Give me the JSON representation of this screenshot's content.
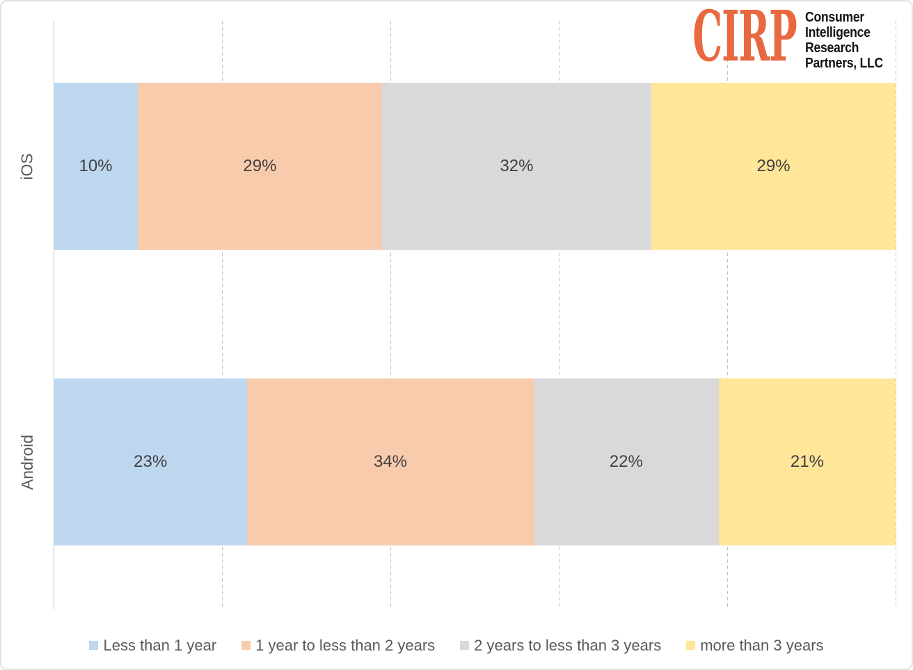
{
  "logo": {
    "brand": "CIRP",
    "brand_color": "#E8693F",
    "company_lines": [
      "Consumer",
      "Intelligence",
      "Research",
      "Partners, LLC"
    ]
  },
  "chart_data": {
    "type": "bar",
    "variant": "horizontal-stacked",
    "title": "",
    "categories": [
      "iOS",
      "Android"
    ],
    "series": [
      {
        "name": "Less than 1 year",
        "color": "#BDD7EE",
        "values": [
          10,
          23
        ]
      },
      {
        "name": "1 year to less than 2 years",
        "color": "#F8CBAD",
        "values": [
          29,
          34
        ]
      },
      {
        "name": "2 years to less than 3 years",
        "color": "#D9D9D9",
        "values": [
          32,
          22
        ]
      },
      {
        "name": "more than 3 years",
        "color": "#FFE699",
        "values": [
          29,
          21
        ]
      }
    ],
    "value_suffix": "%",
    "xlim": [
      0,
      100
    ],
    "gridlines_percent": [
      20,
      40,
      60,
      80,
      100
    ],
    "grid": true,
    "legend_position": "bottom",
    "value_label_color": "#404040",
    "axis_text_color": "#595959",
    "gridline_color": "#BFBFBF"
  }
}
